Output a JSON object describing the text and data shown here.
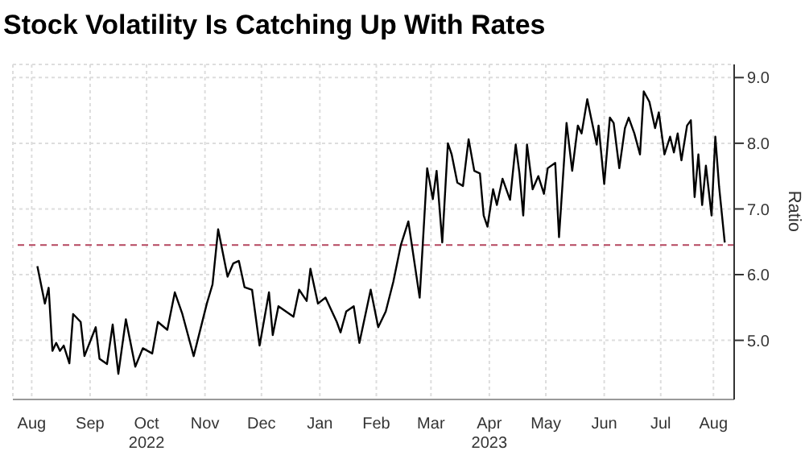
{
  "chart_data": {
    "type": "line",
    "title": "Stock Volatility Is Catching Up With Rates",
    "ylabel": "Ratio",
    "x": [
      "2022-08-19",
      "2022-08-23",
      "2022-08-25",
      "2022-08-27",
      "2022-08-29",
      "2022-08-31",
      "2022-09-02",
      "2022-09-05",
      "2022-09-07",
      "2022-09-11",
      "2022-09-13",
      "2022-09-19",
      "2022-09-21",
      "2022-09-25",
      "2022-09-28",
      "2022-10-01",
      "2022-10-05",
      "2022-10-10",
      "2022-10-14",
      "2022-10-19",
      "2022-10-22",
      "2022-10-27",
      "2022-10-31",
      "2022-11-04",
      "2022-11-10",
      "2022-11-17",
      "2022-11-20",
      "2022-11-23",
      "2022-11-28",
      "2022-12-01",
      "2022-12-04",
      "2022-12-07",
      "2022-12-11",
      "2022-12-15",
      "2022-12-20",
      "2022-12-22",
      "2022-12-25",
      "2022-12-29",
      "2023-01-02",
      "2023-01-05",
      "2023-01-09",
      "2023-01-11",
      "2023-01-15",
      "2023-01-19",
      "2023-01-25",
      "2023-01-27",
      "2023-01-30",
      "2023-02-03",
      "2023-02-06",
      "2023-02-12",
      "2023-02-16",
      "2023-02-20",
      "2023-02-24",
      "2023-02-28",
      "2023-03-04",
      "2023-03-10",
      "2023-03-14",
      "2023-03-17",
      "2023-03-19",
      "2023-03-22",
      "2023-03-25",
      "2023-03-27",
      "2023-03-30",
      "2023-04-02",
      "2023-04-05",
      "2023-04-08",
      "2023-04-11",
      "2023-04-13",
      "2023-04-15",
      "2023-04-18",
      "2023-04-20",
      "2023-04-23",
      "2023-04-27",
      "2023-04-30",
      "2023-05-02",
      "2023-05-04",
      "2023-05-06",
      "2023-05-09",
      "2023-05-12",
      "2023-05-15",
      "2023-05-17",
      "2023-05-21",
      "2023-05-23",
      "2023-05-27",
      "2023-05-30",
      "2023-06-02",
      "2023-06-04",
      "2023-06-07",
      "2023-06-09",
      "2023-06-12",
      "2023-06-13",
      "2023-06-16",
      "2023-06-19",
      "2023-06-21",
      "2023-06-24",
      "2023-06-27",
      "2023-06-29",
      "2023-07-02",
      "2023-07-05",
      "2023-07-07",
      "2023-07-10",
      "2023-07-13",
      "2023-07-15",
      "2023-07-18",
      "2023-07-21",
      "2023-07-23",
      "2023-07-25",
      "2023-07-27",
      "2023-07-30",
      "2023-08-01",
      "2023-08-03",
      "2023-08-05",
      "2023-08-07",
      "2023-08-09",
      "2023-08-12",
      "2023-08-14",
      "2023-08-16",
      "2023-08-19"
    ],
    "series": [
      {
        "color": "#000000",
        "values": [
          6.13,
          5.56,
          5.8,
          4.84,
          4.96,
          4.84,
          4.92,
          4.65,
          5.4,
          5.28,
          4.76,
          5.2,
          4.72,
          4.64,
          5.24,
          4.49,
          5.32,
          4.6,
          4.88,
          4.8,
          5.28,
          5.16,
          5.73,
          5.4,
          4.76,
          5.56,
          5.85,
          6.69,
          5.97,
          6.17,
          6.21,
          5.81,
          5.77,
          4.92,
          5.73,
          5.08,
          5.52,
          5.44,
          5.36,
          5.77,
          5.6,
          6.09,
          5.56,
          5.65,
          5.28,
          5.12,
          5.44,
          5.52,
          4.96,
          5.77,
          5.2,
          5.44,
          5.89,
          6.45,
          6.81,
          5.65,
          7.62,
          7.15,
          7.58,
          6.49,
          8.0,
          7.83,
          7.4,
          7.35,
          8.06,
          7.58,
          7.54,
          6.9,
          6.73,
          7.3,
          7.06,
          7.46,
          7.14,
          7.98,
          7.54,
          6.9,
          7.98,
          7.3,
          7.5,
          7.23,
          7.62,
          7.7,
          6.57,
          8.31,
          7.58,
          8.27,
          8.15,
          8.67,
          8.39,
          7.98,
          8.27,
          7.38,
          8.39,
          8.31,
          7.62,
          8.23,
          8.39,
          8.15,
          7.83,
          8.79,
          8.63,
          8.23,
          8.47,
          7.83,
          8.1,
          7.86,
          8.15,
          7.74,
          8.27,
          8.35,
          7.18,
          7.83,
          7.06,
          7.66,
          6.9,
          8.1,
          7.34,
          6.49
        ]
      }
    ],
    "xlim": [
      "2022-08-06",
      "2023-08-24"
    ],
    "xticks": [
      {
        "value": "2022-08-16",
        "label": "Aug"
      },
      {
        "value": "2022-09-16",
        "label": "Sep"
      },
      {
        "value": "2022-10-16",
        "label": "Oct\n2022"
      },
      {
        "value": "2022-11-16",
        "label": "Nov"
      },
      {
        "value": "2022-12-16",
        "label": "Dec"
      },
      {
        "value": "2023-01-16",
        "label": "Jan"
      },
      {
        "value": "2023-02-15",
        "label": "Feb"
      },
      {
        "value": "2023-03-16",
        "label": "Mar"
      },
      {
        "value": "2023-04-16",
        "label": "Apr\n2023"
      },
      {
        "value": "2023-05-16",
        "label": "May"
      },
      {
        "value": "2023-06-16",
        "label": "Jun"
      },
      {
        "value": "2023-07-16",
        "label": "Jul"
      },
      {
        "value": "2023-08-13",
        "label": "Aug"
      }
    ],
    "ylim": [
      4.1,
      9.2
    ],
    "yticks": [
      {
        "value": 5,
        "label": "5.0"
      },
      {
        "value": 6,
        "label": "6.0"
      },
      {
        "value": 7,
        "label": "7.0"
      },
      {
        "value": 8,
        "label": "8.0"
      },
      {
        "value": 9,
        "label": "9.0"
      }
    ],
    "ref_lines": [
      {
        "axis": "y",
        "value": 6.45,
        "color": "#b5465f",
        "line_style": "dashed"
      }
    ],
    "grid": true
  }
}
